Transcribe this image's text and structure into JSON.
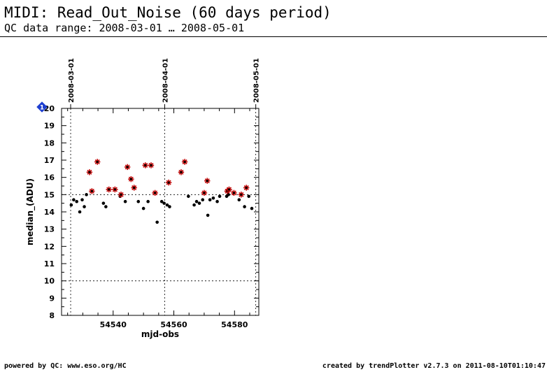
{
  "header": {
    "title": "MIDI: Read_Out_Noise (60 days period)",
    "subtitle": "QC data range: 2008-03-01 … 2008-05-01"
  },
  "footer": {
    "left": "powered by QC: www.eso.org/HC",
    "right": "created by trendPlotter v2.7.3 on 2011-08-10T01:10:47"
  },
  "chart_data": {
    "type": "scatter",
    "xlabel": "mjd-obs",
    "ylabel": "median_(ADU)",
    "xlim": [
      54523,
      54588
    ],
    "ylim": [
      8,
      20
    ],
    "x_ticks": [
      54540,
      54560,
      54580
    ],
    "y_ticks": [
      8,
      9,
      10,
      11,
      12,
      13,
      14,
      15,
      16,
      17,
      18,
      19,
      20
    ],
    "date_markers": [
      {
        "mjd": 54526,
        "label": "2008-03-01"
      },
      {
        "mjd": 54557,
        "label": "2008-04-01"
      },
      {
        "mjd": 54587,
        "label": "2008-05-01"
      }
    ],
    "reference_lines": [
      15,
      10
    ],
    "marker_badge": "1",
    "series": [
      {
        "marker": "dot",
        "color": "#000000",
        "points": [
          [
            54526.2,
            14.4
          ],
          [
            54527.0,
            14.7
          ],
          [
            54528.0,
            14.6
          ],
          [
            54529.0,
            14.0
          ],
          [
            54529.8,
            14.7
          ],
          [
            54530.5,
            14.3
          ],
          [
            54531.2,
            15.0
          ],
          [
            54536.8,
            14.5
          ],
          [
            54537.6,
            14.3
          ],
          [
            54542.3,
            14.9
          ],
          [
            54544.0,
            14.6
          ],
          [
            54548.3,
            14.6
          ],
          [
            54550.0,
            14.2
          ],
          [
            54551.5,
            14.6
          ],
          [
            54554.5,
            13.4
          ],
          [
            54556.0,
            14.6
          ],
          [
            54556.8,
            14.5
          ],
          [
            54557.8,
            14.4
          ],
          [
            54558.6,
            14.3
          ],
          [
            54564.8,
            14.9
          ],
          [
            54566.7,
            14.4
          ],
          [
            54567.5,
            14.6
          ],
          [
            54568.4,
            14.5
          ],
          [
            54569.5,
            14.7
          ],
          [
            54571.2,
            13.8
          ],
          [
            54571.9,
            14.7
          ],
          [
            54573.0,
            14.8
          ],
          [
            54574.3,
            14.6
          ],
          [
            54575.1,
            14.9
          ],
          [
            54577.4,
            14.9
          ],
          [
            54578.0,
            15.0
          ],
          [
            54581.5,
            14.7
          ],
          [
            54583.3,
            14.3
          ],
          [
            54584.7,
            14.9
          ],
          [
            54585.7,
            14.2
          ]
        ]
      },
      {
        "marker": "star",
        "color": "#c00000",
        "points": [
          [
            54532.2,
            16.3
          ],
          [
            54533.0,
            15.2
          ],
          [
            54534.8,
            16.9
          ],
          [
            54538.6,
            15.3
          ],
          [
            54540.6,
            15.3
          ],
          [
            54542.6,
            15.0
          ],
          [
            54544.7,
            16.6
          ],
          [
            54545.9,
            15.9
          ],
          [
            54546.9,
            15.4
          ],
          [
            54550.6,
            16.7
          ],
          [
            54552.5,
            16.7
          ],
          [
            54553.8,
            15.1
          ],
          [
            54558.3,
            15.7
          ],
          [
            54562.4,
            16.3
          ],
          [
            54563.6,
            16.9
          ],
          [
            54570.0,
            15.1
          ],
          [
            54571.0,
            15.8
          ],
          [
            54577.6,
            15.2
          ],
          [
            54578.2,
            15.3
          ],
          [
            54579.8,
            15.1
          ],
          [
            54582.2,
            15.0
          ],
          [
            54583.9,
            15.4
          ]
        ]
      }
    ]
  }
}
